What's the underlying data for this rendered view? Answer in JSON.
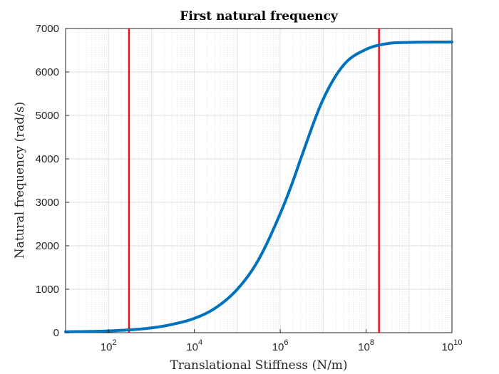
{
  "chart_data": {
    "type": "line",
    "title": "First natural frequency",
    "xlabel": "Translational Stiffness (N/m)",
    "ylabel": "Natural frequency (rad/s)",
    "xscale": "log",
    "xlim": [
      10,
      10000000000
    ],
    "ylim": [
      0,
      7000
    ],
    "grid": true,
    "x_ticks": [
      {
        "value": 100,
        "base": "10",
        "exp": "2"
      },
      {
        "value": 10000,
        "base": "10",
        "exp": "4"
      },
      {
        "value": 1000000,
        "base": "10",
        "exp": "6"
      },
      {
        "value": 100000000,
        "base": "10",
        "exp": "8"
      },
      {
        "value": 10000000000,
        "base": "10",
        "exp": "10"
      }
    ],
    "y_ticks": [
      "0",
      "1000",
      "2000",
      "3000",
      "4000",
      "5000",
      "6000",
      "7000"
    ],
    "series": [
      {
        "color": "#0072BD",
        "x": [
          10,
          100,
          1000,
          3000,
          10000,
          30000,
          100000,
          300000,
          1000000,
          2000000,
          3000000,
          10000000,
          30000000,
          100000000,
          300000000,
          1000000000,
          10000000000
        ],
        "y": [
          20,
          40,
          110,
          190,
          330,
          560,
          1000,
          1650,
          2740,
          3500,
          4000,
          5370,
          6160,
          6520,
          6650,
          6680,
          6690
        ]
      }
    ],
    "vertical_lines": [
      {
        "x": 300,
        "color": "#E8141C"
      },
      {
        "x": 200000000,
        "color": "#E8141C"
      }
    ]
  }
}
